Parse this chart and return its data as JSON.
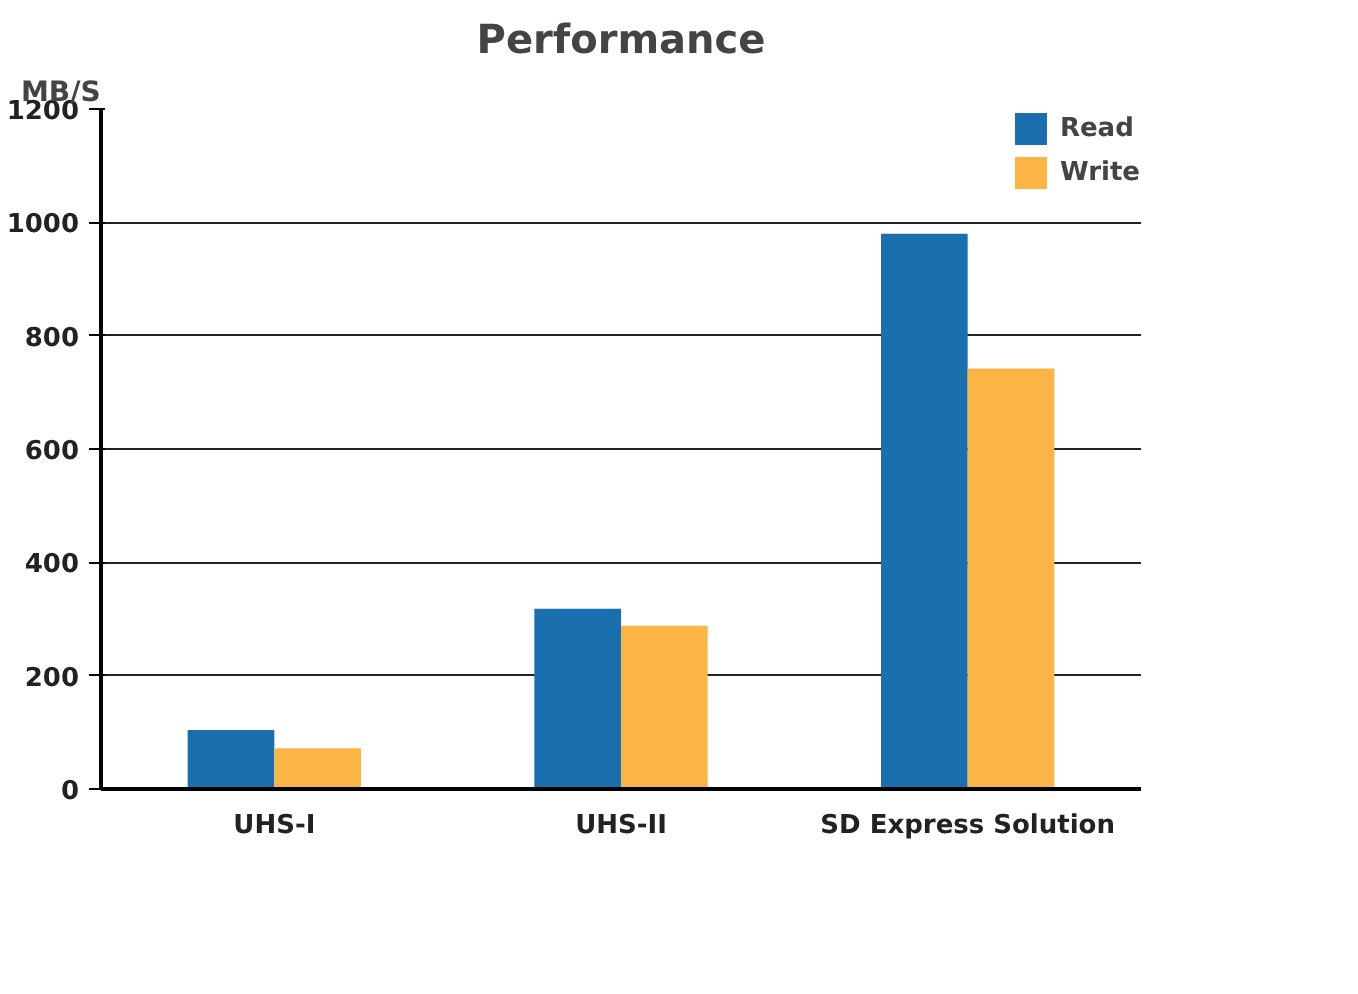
{
  "chart_data": {
    "type": "bar",
    "title": "Performance",
    "ylabel": "MB/S",
    "categories": [
      "UHS-I",
      "UHS-II",
      "SD Express Solution"
    ],
    "series": [
      {
        "name": "Read",
        "color": "#1a6fae",
        "values": [
          104,
          318,
          980
        ]
      },
      {
        "name": "Write",
        "color": "#fbb544",
        "values": [
          72,
          288,
          742
        ]
      }
    ],
    "ylim": [
      0,
      1200
    ],
    "yticks": [
      0,
      200,
      400,
      600,
      800,
      1000,
      1200
    ],
    "grid": "y",
    "legend": "top right"
  }
}
